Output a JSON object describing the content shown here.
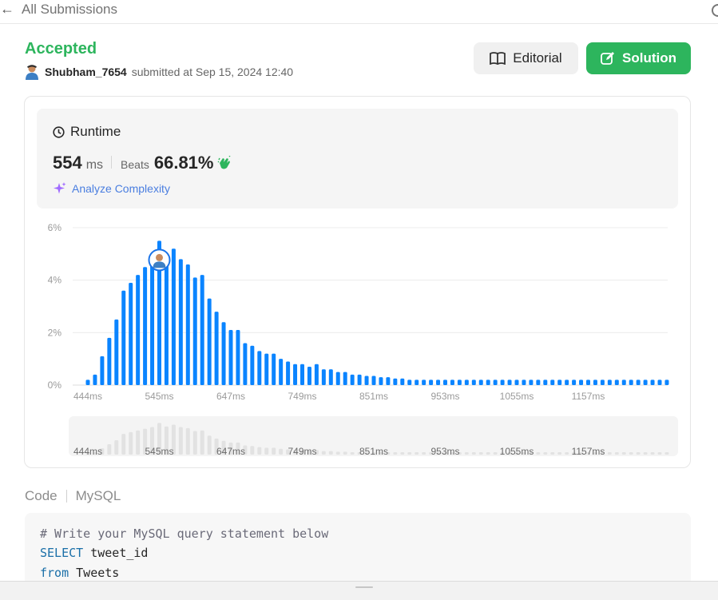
{
  "header": {
    "back_label": "All Submissions"
  },
  "submission": {
    "status": "Accepted",
    "user": "Shubham_7654",
    "submitted_text": "submitted at Sep 15, 2024 12:40"
  },
  "buttons": {
    "editorial": "Editorial",
    "solution": "Solution"
  },
  "runtime": {
    "title": "Runtime",
    "value": "554",
    "unit": "ms",
    "beats_label": "Beats",
    "beats_value": "66.81%",
    "analyze_label": "Analyze Complexity"
  },
  "colors": {
    "accent_green": "#2db55d",
    "bar_blue": "#0a84ff",
    "link_blue": "#4a7ee0",
    "sparkle_purple": "#a06bff"
  },
  "chart_data": {
    "type": "bar",
    "ylabel_ticks": [
      "0%",
      "2%",
      "4%",
      "6%"
    ],
    "ylim": [
      0,
      6
    ],
    "xtick_labels": [
      "444ms",
      "545ms",
      "647ms",
      "749ms",
      "851ms",
      "953ms",
      "1055ms",
      "1157ms"
    ],
    "grid": true,
    "series": [
      {
        "values": [
          0.2,
          0.4,
          1.1,
          1.8,
          2.5,
          3.6,
          3.9,
          4.2,
          4.5,
          4.8,
          5.5,
          4.9,
          5.2,
          4.8,
          4.6,
          4.1,
          4.2,
          3.3,
          2.8,
          2.4,
          2.1,
          2.1,
          1.6,
          1.5,
          1.3,
          1.2,
          1.2,
          1.0,
          0.9,
          0.8,
          0.8,
          0.7,
          0.8,
          0.6,
          0.6,
          0.5,
          0.5,
          0.4,
          0.4,
          0.35,
          0.35,
          0.3,
          0.3,
          0.25,
          0.25,
          0.2,
          0.2,
          0.2,
          0.2,
          0.2,
          0.2,
          0.2,
          0.2,
          0.2,
          0.2,
          0.2,
          0.2,
          0.2,
          0.2,
          0.2,
          0.2,
          0.2,
          0.2,
          0.2,
          0.2,
          0.2,
          0.2,
          0.2,
          0.2,
          0.2,
          0.2,
          0.2,
          0.2,
          0.2,
          0.2,
          0.2,
          0.2,
          0.2,
          0.2,
          0.2,
          0.2,
          0.2
        ]
      }
    ],
    "highlight_index": 10
  },
  "code": {
    "tab_label": "Code",
    "language": "MySQL",
    "lines": [
      {
        "cls": "c-comment",
        "text": "# Write your MySQL query statement below"
      },
      {
        "parts": [
          {
            "cls": "c-kw",
            "text": "SELECT"
          },
          {
            "cls": "c-plain",
            "text": " tweet_id"
          }
        ]
      },
      {
        "parts": [
          {
            "cls": "c-kw",
            "text": "from"
          },
          {
            "cls": "c-plain",
            "text": " Tweets"
          }
        ]
      }
    ]
  }
}
